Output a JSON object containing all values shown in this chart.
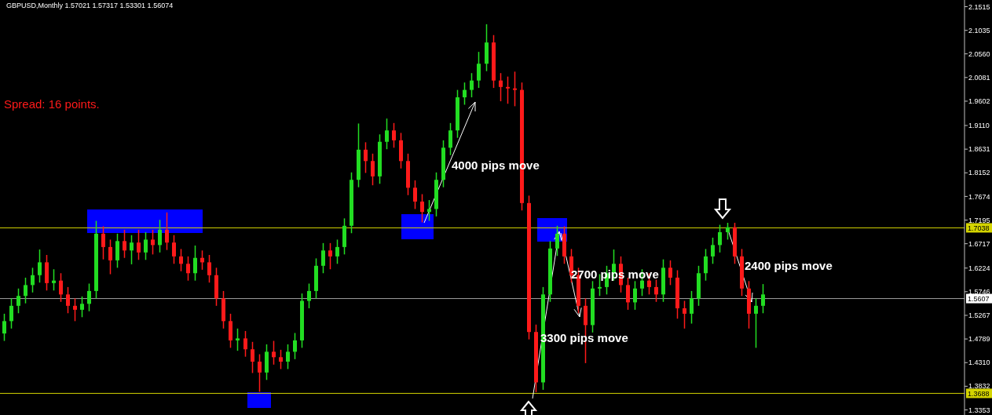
{
  "chart_data": {
    "type": "candlestick",
    "title": "GBPUSD,Monthly  1.57021 1.57317 1.53301 1.56074",
    "annotations": [
      "Spread: 16 points.",
      "4000 pips move",
      "2700 pips move",
      "3300 pips move",
      "2400 pips move"
    ],
    "categories": [
      null,
      null,
      null,
      null,
      null,
      null,
      null,
      null,
      null,
      null,
      null,
      null,
      null,
      null,
      null,
      null,
      null,
      null,
      null,
      null,
      null,
      null,
      null,
      null,
      null,
      null,
      null,
      null,
      null,
      null,
      null,
      null,
      null,
      null,
      null,
      null,
      null,
      null,
      null,
      null,
      null,
      null,
      null,
      null,
      null,
      null,
      null,
      null,
      null,
      null,
      null,
      null,
      null,
      null,
      null,
      null,
      null,
      null,
      null,
      null,
      null,
      null,
      null,
      null,
      null,
      null,
      null,
      null,
      null,
      null,
      null,
      null,
      null,
      null,
      null,
      null,
      null,
      null,
      null,
      null,
      null,
      null,
      null,
      null,
      null,
      null,
      null,
      null,
      null,
      null,
      null,
      null,
      null,
      null,
      null,
      null,
      null,
      null,
      null,
      null,
      null,
      null,
      null,
      null,
      null,
      null,
      null,
      null,
      null,
      null,
      null,
      null,
      null,
      null,
      null,
      null,
      null,
      null,
      null,
      null,
      null,
      null,
      null,
      null,
      null,
      null,
      null,
      null,
      null,
      null,
      null,
      null,
      null,
      null,
      null,
      null
    ],
    "ohlc": [
      [
        1.49,
        1.53,
        1.475,
        1.515
      ],
      [
        1.515,
        1.561,
        1.5,
        1.546
      ],
      [
        1.546,
        1.581,
        1.531,
        1.566
      ],
      [
        1.566,
        1.603,
        1.551,
        1.588
      ],
      [
        1.588,
        1.623,
        1.573,
        1.608
      ],
      [
        1.608,
        1.66,
        1.593,
        1.634
      ],
      [
        1.634,
        1.649,
        1.577,
        1.592
      ],
      [
        1.592,
        1.62,
        1.577,
        1.597
      ],
      [
        1.597,
        1.612,
        1.554,
        1.569
      ],
      [
        1.569,
        1.584,
        1.531,
        1.546
      ],
      [
        1.546,
        1.561,
        1.515,
        1.538
      ],
      [
        1.538,
        1.565,
        1.523,
        1.55
      ],
      [
        1.55,
        1.591,
        1.535,
        1.576
      ],
      [
        1.576,
        1.718,
        1.561,
        1.692
      ],
      [
        1.692,
        1.707,
        1.64,
        1.665
      ],
      [
        1.665,
        1.68,
        1.61,
        1.638
      ],
      [
        1.638,
        1.692,
        1.623,
        1.677
      ],
      [
        1.677,
        1.7,
        1.643,
        1.658
      ],
      [
        1.658,
        1.689,
        1.63,
        1.674
      ],
      [
        1.674,
        1.7,
        1.639,
        1.654
      ],
      [
        1.654,
        1.695,
        1.639,
        1.68
      ],
      [
        1.68,
        1.7,
        1.65,
        1.669
      ],
      [
        1.669,
        1.72,
        1.654,
        1.7
      ],
      [
        1.7,
        1.735,
        1.659,
        1.674
      ],
      [
        1.674,
        1.689,
        1.631,
        1.646
      ],
      [
        1.646,
        1.661,
        1.616,
        1.631
      ],
      [
        1.631,
        1.646,
        1.597,
        1.612
      ],
      [
        1.612,
        1.668,
        1.597,
        1.643
      ],
      [
        1.643,
        1.658,
        1.619,
        1.634
      ],
      [
        1.634,
        1.649,
        1.593,
        1.608
      ],
      [
        1.608,
        1.623,
        1.546,
        1.561
      ],
      [
        1.561,
        1.576,
        1.5,
        1.515
      ],
      [
        1.515,
        1.53,
        1.461,
        1.476
      ],
      [
        1.476,
        1.5,
        1.455,
        1.48
      ],
      [
        1.48,
        1.495,
        1.443,
        1.458
      ],
      [
        1.458,
        1.473,
        1.41,
        1.433
      ],
      [
        1.433,
        1.448,
        1.372,
        1.411
      ],
      [
        1.411,
        1.468,
        1.396,
        1.453
      ],
      [
        1.453,
        1.475,
        1.427,
        1.442
      ],
      [
        1.442,
        1.457,
        1.418,
        1.433
      ],
      [
        1.433,
        1.468,
        1.418,
        1.453
      ],
      [
        1.453,
        1.491,
        1.438,
        1.476
      ],
      [
        1.476,
        1.571,
        1.461,
        1.556
      ],
      [
        1.556,
        1.591,
        1.541,
        1.576
      ],
      [
        1.576,
        1.642,
        1.561,
        1.627
      ],
      [
        1.627,
        1.673,
        1.612,
        1.658
      ],
      [
        1.658,
        1.673,
        1.62,
        1.646
      ],
      [
        1.646,
        1.68,
        1.631,
        1.665
      ],
      [
        1.665,
        1.723,
        1.65,
        1.708
      ],
      [
        1.708,
        1.816,
        1.693,
        1.801
      ],
      [
        1.801,
        1.915,
        1.786,
        1.862
      ],
      [
        1.862,
        1.877,
        1.815,
        1.839
      ],
      [
        1.839,
        1.854,
        1.79,
        1.808
      ],
      [
        1.808,
        1.893,
        1.793,
        1.878
      ],
      [
        1.878,
        1.925,
        1.863,
        1.901
      ],
      [
        1.901,
        1.916,
        1.866,
        1.881
      ],
      [
        1.881,
        1.896,
        1.824,
        1.839
      ],
      [
        1.839,
        1.854,
        1.77,
        1.785
      ],
      [
        1.785,
        1.8,
        1.742,
        1.757
      ],
      [
        1.757,
        1.772,
        1.715,
        1.736
      ],
      [
        1.736,
        1.76,
        1.718,
        1.742
      ],
      [
        1.742,
        1.816,
        1.727,
        1.801
      ],
      [
        1.801,
        1.881,
        1.786,
        1.866
      ],
      [
        1.866,
        1.916,
        1.851,
        1.901
      ],
      [
        1.901,
        1.983,
        1.886,
        1.968
      ],
      [
        1.968,
        1.998,
        1.953,
        1.983
      ],
      [
        1.983,
        2.017,
        1.968,
        2.002
      ],
      [
        2.002,
        2.06,
        1.987,
        2.036
      ],
      [
        2.036,
        2.116,
        2.021,
        2.079
      ],
      [
        2.079,
        2.094,
        1.987,
        2.002
      ],
      [
        2.002,
        2.017,
        1.96,
        1.989
      ],
      [
        1.989,
        2.01,
        1.955,
        1.986
      ],
      [
        1.986,
        2.02,
        1.95,
        1.983
      ],
      [
        1.983,
        1.998,
        1.739,
        1.754
      ],
      [
        1.754,
        1.769,
        1.478,
        1.493
      ],
      [
        1.493,
        1.508,
        1.371,
        1.391
      ],
      [
        1.391,
        1.584,
        1.376,
        1.569
      ],
      [
        1.569,
        1.677,
        1.554,
        1.662
      ],
      [
        1.662,
        1.708,
        1.647,
        1.692
      ],
      [
        1.692,
        1.707,
        1.631,
        1.646
      ],
      [
        1.646,
        1.661,
        1.593,
        1.608
      ],
      [
        1.608,
        1.623,
        1.531,
        1.546
      ],
      [
        1.546,
        1.561,
        1.43,
        1.507
      ],
      [
        1.507,
        1.596,
        1.492,
        1.581
      ],
      [
        1.581,
        1.61,
        1.566,
        1.584
      ],
      [
        1.584,
        1.627,
        1.569,
        1.612
      ],
      [
        1.612,
        1.66,
        1.597,
        1.631
      ],
      [
        1.631,
        1.646,
        1.573,
        1.588
      ],
      [
        1.588,
        1.603,
        1.538,
        1.553
      ],
      [
        1.553,
        1.596,
        1.538,
        1.581
      ],
      [
        1.581,
        1.62,
        1.566,
        1.597
      ],
      [
        1.597,
        1.612,
        1.569,
        1.584
      ],
      [
        1.584,
        1.599,
        1.554,
        1.569
      ],
      [
        1.569,
        1.64,
        1.554,
        1.623
      ],
      [
        1.623,
        1.638,
        1.588,
        1.603
      ],
      [
        1.603,
        1.618,
        1.52,
        1.541
      ],
      [
        1.541,
        1.556,
        1.5,
        1.53
      ],
      [
        1.53,
        1.576,
        1.51,
        1.561
      ],
      [
        1.561,
        1.627,
        1.546,
        1.612
      ],
      [
        1.612,
        1.661,
        1.597,
        1.646
      ],
      [
        1.646,
        1.684,
        1.631,
        1.669
      ],
      [
        1.669,
        1.71,
        1.654,
        1.695
      ],
      [
        1.695,
        1.714,
        1.68,
        1.705
      ],
      [
        1.705,
        1.714,
        1.631,
        1.646
      ],
      [
        1.646,
        1.661,
        1.566,
        1.581
      ],
      [
        1.581,
        1.596,
        1.5,
        1.53
      ],
      [
        1.53,
        1.561,
        1.461,
        1.546
      ],
      [
        1.546,
        1.59,
        1.531,
        1.569
      ],
      null,
      null,
      null,
      null,
      null,
      null,
      null,
      null,
      null,
      null,
      null,
      null,
      null,
      null,
      null,
      null,
      null,
      null,
      null,
      null,
      null,
      null,
      null,
      null,
      null,
      null,
      null,
      null
    ],
    "ylim": [
      1.325,
      2.165
    ],
    "yticks": [
      1.3353,
      1.3832,
      {
        "value": 1.431,
        "label": "1.4310"
      },
      1.4789,
      1.5267,
      1.5746,
      1.6224,
      1.6717,
      1.7195,
      1.7674,
      1.8152,
      1.8631,
      {
        "value": 1.911,
        "label": "1.9110"
      },
      1.9602,
      2.0081,
      {
        "value": 2.056,
        "label": "2.0560"
      },
      2.1035,
      2.1515
    ],
    "ref_lines": [
      {
        "axis": "y",
        "value": 1.7038,
        "label": "1.7038",
        "color": "#d4d400"
      },
      {
        "axis": "y",
        "value": 1.5607,
        "label": "1.5607",
        "color": "#a0a0a0"
      },
      {
        "axis": "y",
        "value": 1.3688,
        "label": "1.3688",
        "color": "#d4d400"
      }
    ],
    "grid": false
  }
}
